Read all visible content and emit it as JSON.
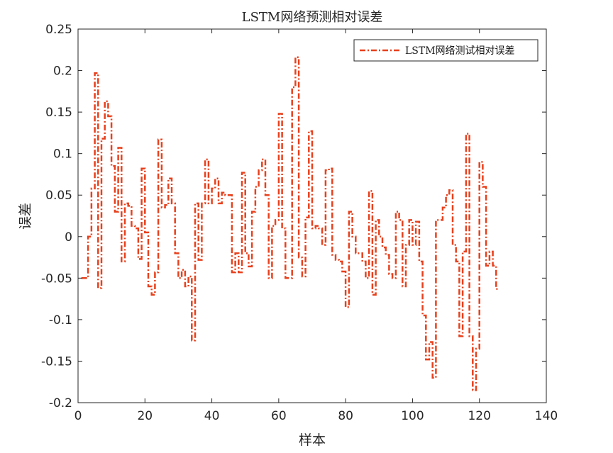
{
  "chart_data": {
    "type": "line",
    "title": "LSTM网络预测相对误差",
    "xlabel": "样本",
    "ylabel": "误差",
    "xlim": [
      0,
      140
    ],
    "ylim": [
      -0.2,
      0.25
    ],
    "x_ticks": [
      "0",
      "20",
      "40",
      "60",
      "80",
      "100",
      "120",
      "140"
    ],
    "y_ticks": [
      "0.25",
      "0.2",
      "0.15",
      "0.1",
      "0.05",
      "0",
      "-0.05",
      "-0.1",
      "-0.15",
      "-0.2"
    ],
    "grid": false,
    "legend_position": "top-right",
    "series": [
      {
        "name": "LSTM网络测试相对误差",
        "color": "#e8401c",
        "line_style": "dash-dot",
        "step": true,
        "x": [
          1,
          2,
          3,
          4,
          5,
          6,
          7,
          8,
          9,
          10,
          11,
          12,
          13,
          14,
          15,
          16,
          17,
          18,
          19,
          20,
          21,
          22,
          23,
          24,
          25,
          26,
          27,
          28,
          29,
          30,
          31,
          32,
          33,
          34,
          35,
          36,
          37,
          38,
          39,
          40,
          41,
          42,
          43,
          44,
          45,
          46,
          47,
          48,
          49,
          50,
          51,
          52,
          53,
          54,
          55,
          56,
          57,
          58,
          59,
          60,
          61,
          62,
          63,
          64,
          65,
          66,
          67,
          68,
          69,
          70,
          71,
          72,
          73,
          74,
          75,
          76,
          77,
          78,
          79,
          80,
          81,
          82,
          83,
          84,
          85,
          86,
          87,
          88,
          89,
          90,
          91,
          92,
          93,
          94,
          95,
          96,
          97,
          98,
          99,
          100,
          101,
          102,
          103,
          104,
          105,
          106,
          107,
          108,
          109,
          110,
          111,
          112,
          113,
          114,
          115,
          116,
          117,
          118,
          119,
          120,
          121,
          122,
          123,
          124,
          125
        ],
        "values": [
          -0.05,
          -0.05,
          0.0,
          0.058,
          0.197,
          -0.062,
          0.118,
          0.163,
          0.145,
          0.085,
          0.03,
          0.107,
          -0.03,
          0.04,
          0.037,
          0.013,
          0.01,
          -0.027,
          0.082,
          0.005,
          -0.06,
          -0.07,
          -0.043,
          0.117,
          0.035,
          0.038,
          0.07,
          0.04,
          -0.02,
          -0.05,
          -0.04,
          -0.06,
          -0.048,
          -0.125,
          0.04,
          -0.028,
          0.04,
          0.093,
          0.04,
          0.058,
          0.07,
          0.04,
          0.053,
          0.05,
          0.05,
          -0.043,
          -0.02,
          -0.043,
          0.077,
          -0.02,
          -0.036,
          0.03,
          0.06,
          0.08,
          0.093,
          0.05,
          -0.05,
          0.013,
          0.02,
          0.148,
          0.01,
          -0.05,
          -0.05,
          0.18,
          0.216,
          -0.025,
          -0.048,
          0.023,
          0.127,
          0.01,
          0.013,
          0.01,
          -0.01,
          0.08,
          0.082,
          -0.022,
          -0.028,
          -0.03,
          -0.042,
          -0.085,
          0.03,
          0.0,
          -0.02,
          -0.02,
          -0.03,
          -0.05,
          0.055,
          -0.07,
          0.02,
          0.0,
          -0.013,
          -0.022,
          -0.045,
          -0.05,
          0.03,
          0.02,
          -0.06,
          -0.01,
          0.02,
          -0.01,
          0.018,
          -0.03,
          -0.095,
          -0.148,
          -0.127,
          -0.17,
          0.02,
          0.02,
          0.035,
          0.05,
          0.056,
          -0.01,
          -0.03,
          -0.12,
          -0.018,
          0.124,
          -0.12,
          -0.185,
          -0.135,
          0.09,
          0.06,
          -0.035,
          -0.018,
          -0.035,
          -0.063
        ]
      }
    ]
  }
}
